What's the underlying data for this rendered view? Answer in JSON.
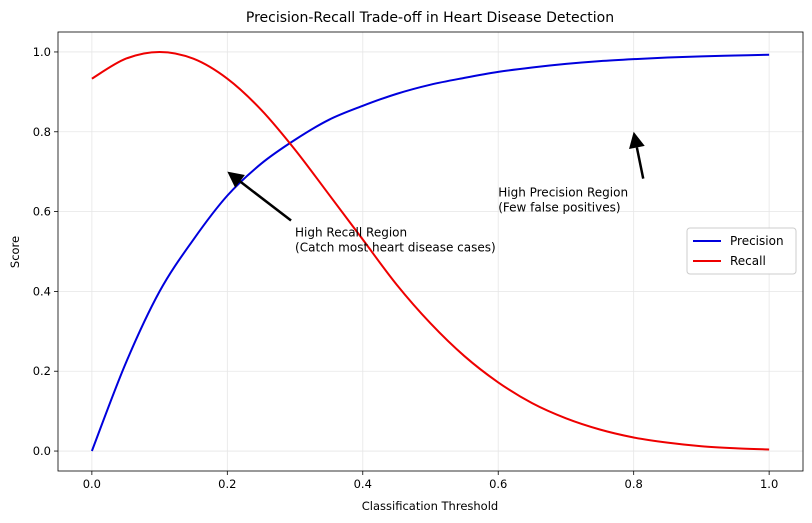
{
  "chart_data": {
    "type": "line",
    "title": "Precision-Recall Trade-off in Heart Disease Detection",
    "xlabel": "Classification Threshold",
    "ylabel": "Score",
    "xlim": [
      -0.05,
      1.05
    ],
    "ylim": [
      -0.05,
      1.05
    ],
    "x_ticks": [
      0.0,
      0.2,
      0.4,
      0.6,
      0.8,
      1.0
    ],
    "y_ticks": [
      0.0,
      0.2,
      0.4,
      0.6,
      0.8,
      1.0
    ],
    "x_tick_labels": [
      "0.0",
      "0.2",
      "0.4",
      "0.6",
      "0.8",
      "1.0"
    ],
    "y_tick_labels": [
      "0.0",
      "0.2",
      "0.4",
      "0.6",
      "0.8",
      "1.0"
    ],
    "grid": true,
    "legend_position": "center-right",
    "series": [
      {
        "name": "Precision",
        "color": "#0000dd",
        "x": [
          0.0,
          0.05,
          0.1,
          0.15,
          0.2,
          0.25,
          0.3,
          0.35,
          0.4,
          0.45,
          0.5,
          0.55,
          0.6,
          0.65,
          0.7,
          0.75,
          0.8,
          0.85,
          0.9,
          0.95,
          1.0
        ],
        "values": [
          0.0,
          0.22,
          0.4,
          0.53,
          0.64,
          0.72,
          0.78,
          0.83,
          0.865,
          0.895,
          0.918,
          0.935,
          0.95,
          0.961,
          0.97,
          0.977,
          0.982,
          0.986,
          0.989,
          0.991,
          0.993
        ]
      },
      {
        "name": "Recall",
        "color": "#ee0000",
        "x": [
          0.0,
          0.05,
          0.1,
          0.15,
          0.2,
          0.25,
          0.3,
          0.35,
          0.4,
          0.45,
          0.5,
          0.55,
          0.6,
          0.65,
          0.7,
          0.75,
          0.8,
          0.85,
          0.9,
          0.95,
          1.0
        ],
        "values": [
          0.933,
          0.983,
          1.0,
          0.983,
          0.933,
          0.855,
          0.755,
          0.643,
          0.53,
          0.417,
          0.32,
          0.238,
          0.172,
          0.12,
          0.082,
          0.054,
          0.034,
          0.021,
          0.012,
          0.007,
          0.004
        ]
      }
    ],
    "annotations": [
      {
        "lines": [
          "High Recall Region",
          "(Catch most heart disease cases)"
        ],
        "text_xy": [
          0.3,
          0.5
        ],
        "arrow_to": [
          0.2,
          0.7
        ]
      },
      {
        "lines": [
          "High Precision Region",
          "(Few false positives)"
        ],
        "text_xy": [
          0.6,
          0.6
        ],
        "arrow_to": [
          0.8,
          0.8
        ]
      }
    ]
  }
}
